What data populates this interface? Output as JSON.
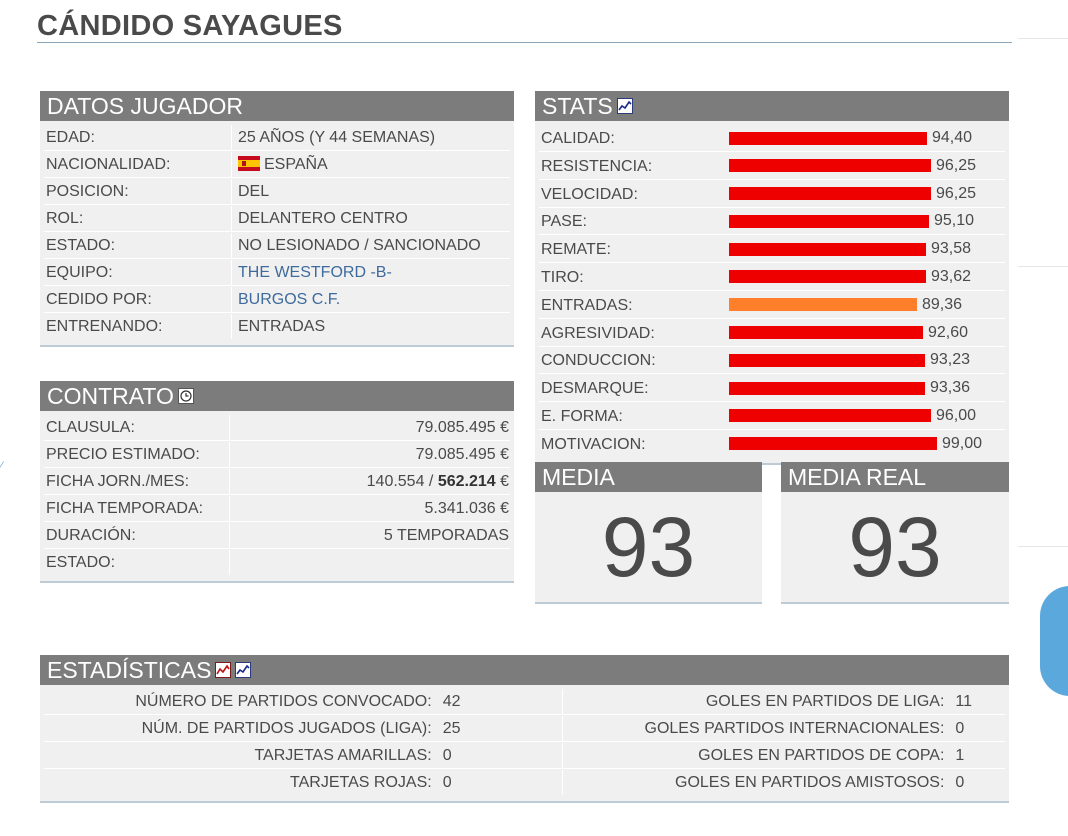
{
  "page": {
    "title": "CÁNDIDO SAYAGUES"
  },
  "datos": {
    "header": "DATOS JUGADOR",
    "rows": [
      {
        "label": "EDAD:",
        "value": "25 AÑOS (Y 44 SEMANAS)"
      },
      {
        "label": "NACIONALIDAD:",
        "value": "ESPAÑA",
        "icon": "spain-flag-icon"
      },
      {
        "label": "POSICION:",
        "value": "DEL"
      },
      {
        "label": "ROL:",
        "value": "DELANTERO CENTRO"
      },
      {
        "label": "ESTADO:",
        "value": "NO LESIONADO / SANCIONADO"
      },
      {
        "label": "EQUIPO:",
        "value": "THE WESTFORD -B-",
        "link": true
      },
      {
        "label": "CEDIDO POR:",
        "value": "BURGOS C.F.",
        "link": true
      },
      {
        "label": "ENTRENANDO:",
        "value": "ENTRADAS"
      }
    ]
  },
  "contrato": {
    "header": "CONTRATO",
    "icon": "clock-icon",
    "rows": [
      {
        "label": "CLAUSULA:",
        "value": "79.085.495 €"
      },
      {
        "label": "PRECIO ESTIMADO:",
        "value": "79.085.495 €"
      },
      {
        "label": "FICHA JORN./MES:",
        "value_pre": "140.554 / ",
        "value_bold": "562.214",
        "value_post": " €"
      },
      {
        "label": "FICHA TEMPORADA:",
        "value": "5.341.036 €"
      },
      {
        "label": "DURACIÓN:",
        "value": "5 TEMPORADAS"
      },
      {
        "label": "ESTADO:",
        "value": ""
      }
    ]
  },
  "stats": {
    "header": "STATS",
    "icon": "chart-icon",
    "bar_max": 100,
    "colors": {
      "high": "#ee0000",
      "mid": "#ff7f2a"
    },
    "rows": [
      {
        "label": "CALIDAD:",
        "value": "94,40",
        "num": 94.4
      },
      {
        "label": "RESISTENCIA:",
        "value": "96,25",
        "num": 96.25
      },
      {
        "label": "VELOCIDAD:",
        "value": "96,25",
        "num": 96.25
      },
      {
        "label": "PASE:",
        "value": "95,10",
        "num": 95.1
      },
      {
        "label": "REMATE:",
        "value": "93,58",
        "num": 93.58
      },
      {
        "label": "TIRO:",
        "value": "93,62",
        "num": 93.62
      },
      {
        "label": "ENTRADAS:",
        "value": "89,36",
        "num": 89.36,
        "level": "mid"
      },
      {
        "label": "AGRESIVIDAD:",
        "value": "92,60",
        "num": 92.6
      },
      {
        "label": "CONDUCCION:",
        "value": "93,23",
        "num": 93.23
      },
      {
        "label": "DESMARQUE:",
        "value": "93,36",
        "num": 93.36
      },
      {
        "label": "E. FORMA:",
        "value": "96,00",
        "num": 96.0
      },
      {
        "label": "MOTIVACION:",
        "value": "99,00",
        "num": 99.0
      }
    ]
  },
  "media": {
    "header": "MEDIA",
    "value": "93"
  },
  "media_real": {
    "header": "MEDIA REAL",
    "value": "93"
  },
  "estadisticas": {
    "header": "ESTADÍSTICAS",
    "icons": [
      "red-chart-icon",
      "blue-chart-icon"
    ],
    "rows": [
      {
        "left_label": "NÚMERO DE PARTIDOS CONVOCADO:",
        "left_value": "42",
        "right_label": "GOLES EN PARTIDOS DE LIGA:",
        "right_value": "11"
      },
      {
        "left_label": "NÚM. DE PARTIDOS JUGADOS (LIGA):",
        "left_value": "25",
        "right_label": "GOLES PARTIDOS INTERNACIONALES:",
        "right_value": "0"
      },
      {
        "left_label": "TARJETAS AMARILLAS:",
        "left_value": "0",
        "right_label": "GOLES EN PARTIDOS DE COPA:",
        "right_value": "1"
      },
      {
        "left_label": "TARJETAS ROJAS:",
        "left_value": "0",
        "right_label": "GOLES EN PARTIDOS AMISTOSOS:",
        "right_value": "0"
      }
    ]
  }
}
